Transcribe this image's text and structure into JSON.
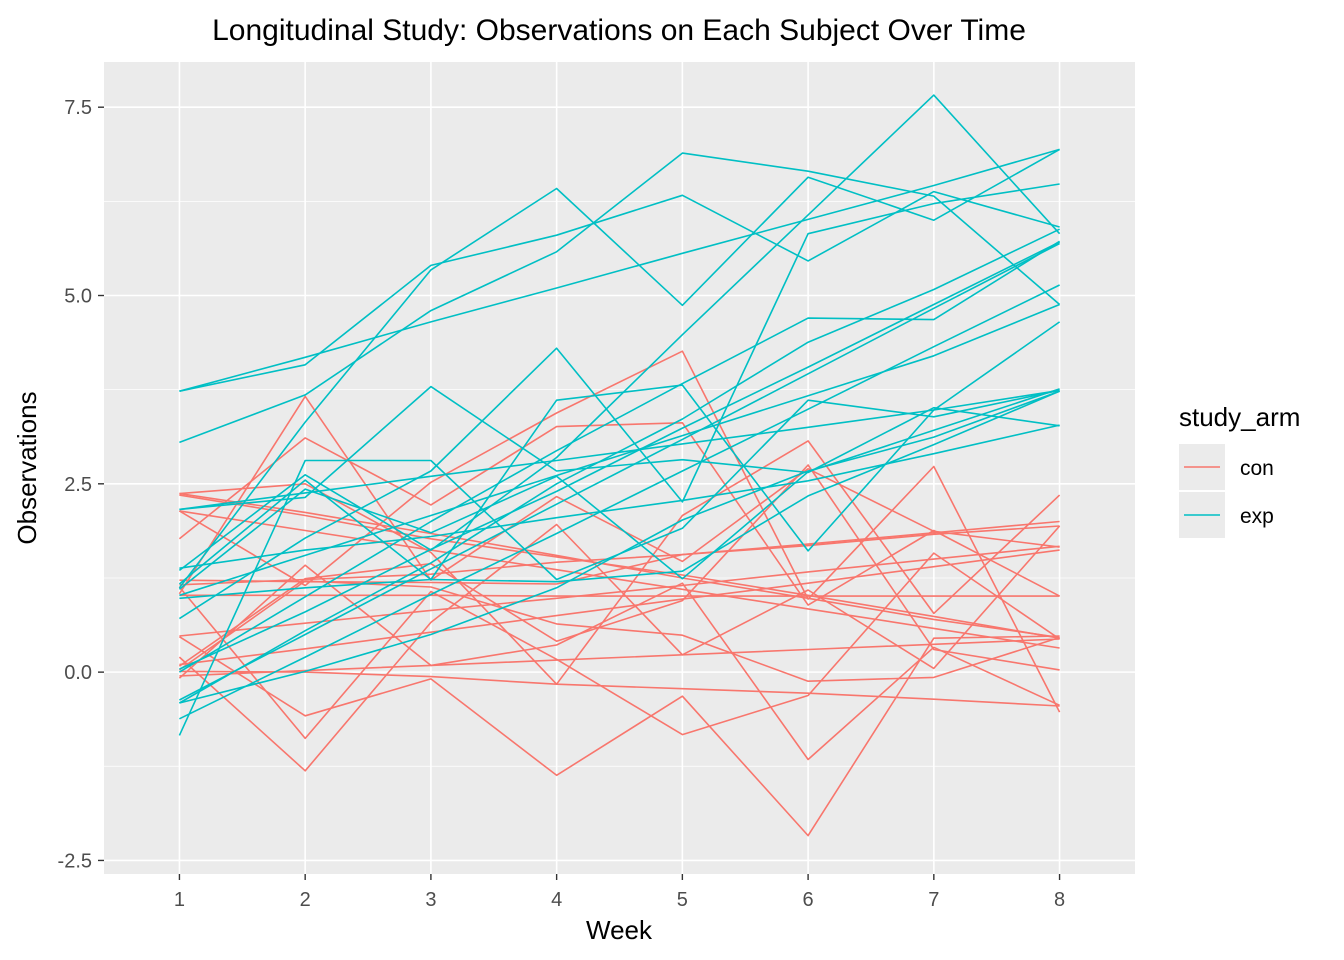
{
  "chart_data": {
    "type": "line",
    "title": "Longitudinal Study: Observations on Each Subject Over Time",
    "xlabel": "Week",
    "ylabel": "Observations",
    "x": [
      1,
      2,
      3,
      4,
      5,
      6,
      7,
      8
    ],
    "x_ticks": [
      "1",
      "2",
      "3",
      "4",
      "5",
      "6",
      "7",
      "8"
    ],
    "y_ticks": [
      -2.5,
      0.0,
      2.5,
      5.0,
      7.5
    ],
    "y_tick_labels": [
      "-2.5",
      "0.0",
      "2.5",
      "5.0",
      "7.5"
    ],
    "xlim": [
      0.4,
      8.6
    ],
    "ylim": [
      -2.68,
      8.1
    ],
    "grid": true,
    "legend": {
      "title": "study_arm",
      "position": "right",
      "entries": [
        {
          "label": "con",
          "color": "#F8766D"
        },
        {
          "label": "exp",
          "color": "#00BFC4"
        }
      ]
    },
    "series": [
      {
        "group": "con",
        "values": [
          0.2,
          -1.31,
          0.66,
          1.96,
          0.23,
          1.09,
          0.05,
          1.94
        ]
      },
      {
        "group": "con",
        "values": [
          1.13,
          -0.88,
          1.07,
          0.17,
          -0.83,
          -0.31,
          1.58,
          0.44
        ]
      },
      {
        "group": "con",
        "values": [
          1.77,
          3.11,
          2.22,
          3.26,
          3.31,
          0.89,
          1.88,
          1.01
        ]
      },
      {
        "group": "con",
        "values": [
          1.04,
          3.66,
          1.22,
          2.33,
          1.47,
          2.7,
          1.87,
          1.66
        ]
      },
      {
        "group": "con",
        "values": [
          0.47,
          -0.58,
          -0.09,
          -1.37,
          -0.32,
          -2.17,
          0.45,
          0.48
        ]
      },
      {
        "group": "con",
        "values": [
          2.37,
          2.5,
          1.59,
          -0.16,
          2.08,
          3.07,
          0.78,
          2.35
        ]
      },
      {
        "group": "con",
        "values": [
          0.03,
          1.21,
          1.13,
          0.64,
          0.49,
          -0.12,
          -0.07,
          0.46
        ]
      },
      {
        "group": "con",
        "values": [
          -0.08,
          1.42,
          0.09,
          0.36,
          1.18,
          -1.16,
          0.33,
          -0.44
        ]
      },
      {
        "group": "con",
        "values": [
          0.08,
          1.24,
          1.44,
          0.41,
          0.95,
          2.75,
          0.3,
          0.03
        ]
      },
      {
        "group": "con",
        "values": [
          2.14,
          1.15,
          2.52,
          3.44,
          4.26,
          0.97,
          2.73,
          -0.53
        ]
      },
      {
        "group": "con",
        "values": [
          0.01,
          0.0,
          -0.06,
          -0.16,
          -0.22,
          -0.28,
          -0.36,
          -0.45
        ]
      },
      {
        "group": "con",
        "values": [
          2.35,
          2.08,
          1.77,
          1.53,
          1.29,
          1.02,
          0.74,
          0.45
        ]
      },
      {
        "group": "con",
        "values": [
          0.48,
          0.65,
          0.82,
          0.98,
          1.15,
          1.33,
          1.5,
          1.67
        ]
      },
      {
        "group": "con",
        "values": [
          1.02,
          1.02,
          1.02,
          1.01,
          1.01,
          1.01,
          1.01,
          1.01
        ]
      },
      {
        "group": "con",
        "values": [
          2.14,
          1.88,
          1.62,
          1.36,
          1.1,
          0.84,
          0.58,
          0.32
        ]
      },
      {
        "group": "con",
        "values": [
          0.1,
          0.31,
          0.53,
          0.75,
          0.97,
          1.18,
          1.4,
          1.62
        ]
      },
      {
        "group": "con",
        "values": [
          1.16,
          1.23,
          1.3,
          1.46,
          1.56,
          1.68,
          1.83,
          1.94
        ]
      },
      {
        "group": "con",
        "values": [
          2.37,
          2.12,
          1.84,
          1.55,
          1.25,
          0.98,
          0.7,
          0.46
        ]
      },
      {
        "group": "con",
        "values": [
          -0.05,
          0.02,
          0.09,
          0.16,
          0.23,
          0.3,
          0.37,
          0.44
        ]
      },
      {
        "group": "con",
        "values": [
          1.22,
          1.2,
          1.19,
          1.17,
          1.56,
          1.7,
          1.85,
          2.0
        ]
      },
      {
        "group": "exp",
        "values": [
          3.73,
          4.08,
          5.4,
          5.8,
          6.33,
          5.46,
          6.38,
          5.91
        ]
      },
      {
        "group": "exp",
        "values": [
          3.05,
          3.68,
          4.8,
          5.58,
          6.89,
          6.65,
          6.32,
          4.88
        ]
      },
      {
        "group": "exp",
        "values": [
          1.12,
          3.32,
          5.34,
          6.42,
          4.87,
          6.57,
          6.0,
          6.94
        ]
      },
      {
        "group": "exp",
        "values": [
          2.16,
          2.32,
          3.79,
          2.67,
          2.82,
          2.65,
          3.51,
          3.27
        ]
      },
      {
        "group": "exp",
        "values": [
          0.71,
          1.78,
          2.67,
          4.3,
          2.26,
          5.82,
          6.22,
          6.48
        ]
      },
      {
        "group": "exp",
        "values": [
          1.35,
          2.62,
          1.62,
          2.85,
          4.48,
          6.07,
          7.66,
          5.82
        ]
      },
      {
        "group": "exp",
        "values": [
          -0.84,
          2.81,
          2.81,
          1.23,
          1.91,
          3.61,
          3.39,
          3.74
        ]
      },
      {
        "group": "exp",
        "values": [
          1.17,
          2.55,
          1.23,
          3.61,
          3.81,
          1.61,
          3.48,
          4.65
        ]
      },
      {
        "group": "exp",
        "values": [
          1.1,
          2.43,
          1.85,
          2.6,
          1.24,
          2.66,
          3.21,
          3.76
        ]
      },
      {
        "group": "exp",
        "values": [
          3.73,
          4.18,
          4.65,
          5.1,
          5.56,
          6.01,
          6.46,
          6.94
        ]
      },
      {
        "group": "exp",
        "values": [
          -0.37,
          0.5,
          1.37,
          2.23,
          3.09,
          3.96,
          4.83,
          5.69
        ]
      },
      {
        "group": "exp",
        "values": [
          2.16,
          2.38,
          2.6,
          2.81,
          3.03,
          3.25,
          3.48,
          3.74
        ]
      },
      {
        "group": "exp",
        "values": [
          -0.62,
          0.2,
          1.03,
          1.84,
          2.67,
          3.49,
          4.32,
          5.14
        ]
      },
      {
        "group": "exp",
        "values": [
          1.02,
          1.55,
          2.08,
          2.61,
          3.14,
          3.67,
          4.2,
          4.88
        ]
      },
      {
        "group": "exp",
        "values": [
          -0.41,
          0.55,
          1.45,
          2.5,
          3.36,
          4.38,
          5.08,
          5.88
        ]
      },
      {
        "group": "exp",
        "values": [
          0.0,
          1.0,
          2.0,
          2.94,
          3.83,
          4.7,
          4.68,
          5.72
        ]
      },
      {
        "group": "exp",
        "values": [
          1.38,
          1.62,
          1.8,
          2.05,
          2.28,
          2.54,
          2.9,
          3.28
        ]
      },
      {
        "group": "exp",
        "values": [
          -0.41,
          0.01,
          0.5,
          1.12,
          2.02,
          2.67,
          3.12,
          3.73
        ]
      },
      {
        "group": "exp",
        "values": [
          0.04,
          0.8,
          1.63,
          2.4,
          3.24,
          4.05,
          4.88,
          5.71
        ]
      },
      {
        "group": "exp",
        "values": [
          0.98,
          1.12,
          1.23,
          1.2,
          1.34,
          2.34,
          3.02,
          3.73
        ]
      }
    ]
  }
}
